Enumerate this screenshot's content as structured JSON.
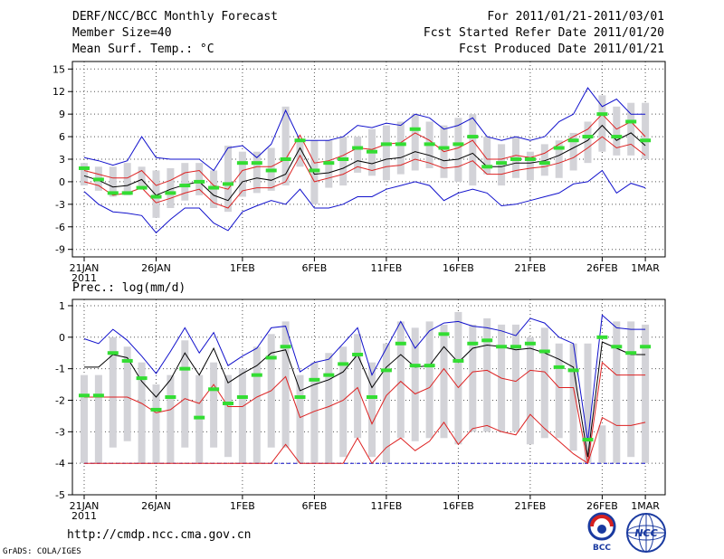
{
  "header": {
    "title": "DERF/NCC/BCC Monthly Forecast",
    "member_size": "Member Size=40",
    "variable": "Mean Surf. Temp.: °C",
    "period": "For 2011/01/21-2011/03/01",
    "started": "Fcst Started Refer Date 2011/01/20",
    "produced": "Fcst Produced Date 2011/01/21"
  },
  "footer": {
    "url": "http://cmdp.ncc.cma.gov.cn",
    "credit": "GrADS: COLA/IGES",
    "logo_left": "BCC",
    "logo_right": "NCC"
  },
  "colors": {
    "box": "#d3d3d8",
    "median": "#33dd33",
    "mean": "#000000",
    "band": "#dd2222",
    "envelope": "#1111cc"
  },
  "chart_data": [
    {
      "type": "box-ensemble",
      "title": "Mean Surf. Temp.: °C",
      "xlabel": "",
      "ylabel": "°C",
      "x_tick_labels": [
        "21JAN",
        "26JAN",
        "1FEB",
        "6FEB",
        "11FEB",
        "16FEB",
        "21FEB",
        "26FEB",
        "1MAR"
      ],
      "x_tick_days": [
        1,
        6,
        12,
        17,
        22,
        27,
        32,
        37,
        40
      ],
      "year_label": "2011",
      "ylim": [
        -10,
        16
      ],
      "yticks": [
        -9,
        -6,
        -3,
        0,
        3,
        6,
        9,
        12,
        15
      ],
      "days": [
        1,
        2,
        3,
        4,
        5,
        6,
        7,
        8,
        9,
        10,
        11,
        12,
        13,
        14,
        15,
        16,
        17,
        18,
        19,
        20,
        21,
        22,
        23,
        24,
        25,
        26,
        27,
        28,
        29,
        30,
        31,
        32,
        33,
        34,
        35,
        36,
        37,
        38,
        39,
        40
      ],
      "box_low": [
        -0.5,
        -1.2,
        -2.0,
        -1.8,
        -1.0,
        -4.8,
        -3.5,
        -2.5,
        -1.8,
        -3.5,
        -4.0,
        -2.0,
        -1.5,
        -1.2,
        -0.5,
        2.0,
        -3.0,
        -0.8,
        -0.5,
        1.2,
        0.8,
        0.2,
        1.0,
        1.5,
        1.8,
        0.5,
        0.0,
        -0.5,
        1.0,
        -0.5,
        0.5,
        0.2,
        0.8,
        0.5,
        1.5,
        2.5,
        4.0,
        3.5,
        3.5,
        3.0
      ],
      "box_high": [
        2.5,
        2.0,
        2.0,
        2.5,
        2.0,
        1.5,
        1.8,
        2.5,
        2.5,
        1.5,
        4.8,
        4.0,
        4.0,
        4.5,
        10.0,
        5.5,
        5.5,
        5.5,
        6.0,
        6.0,
        7.0,
        7.5,
        8.0,
        9.0,
        8.0,
        7.5,
        8.5,
        9.0,
        6.0,
        5.0,
        6.0,
        4.0,
        5.0,
        5.5,
        6.5,
        8.0,
        11.5,
        10.0,
        10.5,
        10.5
      ],
      "median": [
        1.8,
        0.3,
        -1.5,
        -1.5,
        -0.8,
        -2.0,
        -1.5,
        -0.5,
        0.0,
        -0.8,
        -0.3,
        2.5,
        2.5,
        1.5,
        3.0,
        5.5,
        1.5,
        2.5,
        3.0,
        4.5,
        4.0,
        5.0,
        5.0,
        7.0,
        5.0,
        4.5,
        5.0,
        6.0,
        2.0,
        2.5,
        3.0,
        3.0,
        2.5,
        4.5,
        5.5,
        6.0,
        9.0,
        6.0,
        8.0,
        5.5
      ],
      "mean": [
        0.8,
        0.2,
        -0.7,
        -0.5,
        0.3,
        -1.8,
        -1.0,
        -0.4,
        0.0,
        -1.8,
        -2.5,
        0.0,
        0.5,
        0.2,
        1.0,
        4.5,
        1.0,
        1.2,
        1.8,
        2.8,
        2.4,
        3.0,
        3.2,
        4.0,
        3.5,
        2.8,
        3.0,
        3.8,
        2.0,
        2.0,
        2.5,
        2.5,
        2.8,
        3.5,
        4.5,
        5.5,
        7.5,
        5.5,
        6.5,
        4.8
      ],
      "band_upper": [
        1.5,
        1.0,
        0.5,
        0.5,
        1.5,
        -0.5,
        0.2,
        1.2,
        1.5,
        -0.5,
        -1.0,
        1.5,
        2.0,
        2.0,
        3.0,
        6.2,
        2.5,
        2.8,
        3.5,
        4.5,
        4.3,
        5.0,
        5.2,
        6.5,
        5.5,
        4.0,
        4.5,
        5.5,
        3.0,
        3.0,
        3.5,
        3.2,
        3.8,
        5.0,
        6.0,
        7.0,
        9.0,
        7.0,
        8.0,
        6.0
      ],
      "band_lower": [
        0.0,
        -0.5,
        -1.8,
        -1.5,
        -0.8,
        -2.8,
        -2.2,
        -1.5,
        -1.0,
        -2.8,
        -3.5,
        -1.2,
        -0.8,
        -0.8,
        0.0,
        3.5,
        0.0,
        0.5,
        1.0,
        2.0,
        1.5,
        2.0,
        2.2,
        3.0,
        2.5,
        1.8,
        2.0,
        2.8,
        1.0,
        1.0,
        1.5,
        1.8,
        2.0,
        2.5,
        3.2,
        4.5,
        6.0,
        4.5,
        5.0,
        3.5
      ],
      "env_upper": [
        3.2,
        2.8,
        2.2,
        2.8,
        6.0,
        3.2,
        3.0,
        3.0,
        3.0,
        1.5,
        4.5,
        4.8,
        3.2,
        5.0,
        9.5,
        5.5,
        5.5,
        5.5,
        6.0,
        7.5,
        7.2,
        7.8,
        7.5,
        9.0,
        8.5,
        7.0,
        7.5,
        8.5,
        6.0,
        5.5,
        6.0,
        5.5,
        6.0,
        8.0,
        9.0,
        12.5,
        10.0,
        11.0,
        9.0,
        9.0
      ],
      "env_lower": [
        -1.3,
        -3.0,
        -4.0,
        -4.2,
        -4.5,
        -6.8,
        -5.0,
        -3.5,
        -3.5,
        -5.5,
        -6.5,
        -4.0,
        -3.2,
        -2.5,
        -3.0,
        -1.0,
        -3.5,
        -3.5,
        -3.0,
        -2.0,
        -2.0,
        -1.0,
        -0.5,
        0.0,
        -0.5,
        -2.5,
        -1.5,
        -1.0,
        -1.5,
        -3.2,
        -3.0,
        -2.5,
        -2.0,
        -1.5,
        -0.3,
        0.0,
        1.5,
        -1.5,
        -0.2,
        -0.8
      ]
    },
    {
      "type": "box-ensemble",
      "title": "Prec.: log(mm/d)",
      "xlabel": "",
      "ylabel": "log(mm/d)",
      "x_tick_labels": [
        "21JAN",
        "26JAN",
        "1FEB",
        "6FEB",
        "11FEB",
        "16FEB",
        "21FEB",
        "26FEB",
        "1MAR"
      ],
      "x_tick_days": [
        1,
        6,
        12,
        17,
        22,
        27,
        32,
        37,
        40
      ],
      "year_label": "2011",
      "ylim": [
        -5,
        1.2
      ],
      "yticks": [
        -5,
        -4,
        -3,
        -2,
        -1,
        0,
        1
      ],
      "days": [
        1,
        2,
        3,
        4,
        5,
        6,
        7,
        8,
        9,
        10,
        11,
        12,
        13,
        14,
        15,
        16,
        17,
        18,
        19,
        20,
        21,
        22,
        23,
        24,
        25,
        26,
        27,
        28,
        29,
        30,
        31,
        32,
        33,
        34,
        35,
        36,
        37,
        38,
        39,
        40
      ],
      "box_low": [
        -4,
        -4,
        -3.5,
        -3.3,
        -4,
        -4,
        -4,
        -3.5,
        -4,
        -3.5,
        -3.8,
        -4,
        -4,
        -3.5,
        -3.5,
        -4,
        -4,
        -4,
        -3.8,
        -3.2,
        -3.8,
        -4,
        -3.2,
        -3.3,
        -3.2,
        -3.2,
        -3.4,
        -3.0,
        -3.0,
        -3.0,
        -3.0,
        -3.4,
        -3.2,
        -3.2,
        -3.6,
        -4,
        -4,
        -4,
        -3.8,
        -4
      ],
      "box_high": [
        -1.2,
        -1.2,
        0.0,
        -0.3,
        -0.8,
        -1.5,
        -1.2,
        -0.1,
        -1.2,
        -0.8,
        -1.2,
        -1.0,
        -0.3,
        0.1,
        0.5,
        -1.2,
        -0.8,
        -0.5,
        -0.3,
        0.1,
        -0.8,
        -0.2,
        0.5,
        0.3,
        0.5,
        0.4,
        0.8,
        0.4,
        0.6,
        0.4,
        0.4,
        0.0,
        0.3,
        -0.2,
        -0.2,
        -0.2,
        -2.8,
        0.5,
        0.5,
        0.4
      ],
      "median": [
        -1.85,
        -1.85,
        -0.5,
        -0.75,
        -1.3,
        -2.3,
        -1.9,
        -1.0,
        -2.55,
        -1.65,
        -2.1,
        -1.9,
        -1.2,
        -0.65,
        -0.3,
        -1.9,
        -1.35,
        -1.2,
        -0.85,
        -0.55,
        -1.9,
        -1.05,
        -0.2,
        -0.9,
        -0.9,
        0.1,
        -0.75,
        -0.2,
        -0.1,
        -0.3,
        -0.3,
        -0.2,
        -0.45,
        -0.95,
        -1.05,
        -3.25,
        0.0,
        -0.3,
        -0.5,
        -0.3
      ],
      "mean": [
        -0.95,
        -0.95,
        -0.55,
        -0.65,
        -1.4,
        -1.9,
        -1.35,
        -0.5,
        -1.2,
        -0.35,
        -1.45,
        -1.15,
        -0.9,
        -0.5,
        -0.4,
        -1.7,
        -1.5,
        -1.35,
        -1.1,
        -0.55,
        -1.6,
        -0.95,
        -0.55,
        -0.95,
        -0.9,
        -0.3,
        -0.8,
        -0.35,
        -0.25,
        -0.3,
        -0.4,
        -0.35,
        -0.5,
        -0.7,
        -0.95,
        -3.8,
        -0.15,
        -0.35,
        -0.55,
        -0.55
      ],
      "band_upper": [
        -1.9,
        -1.9,
        -1.9,
        -1.9,
        -2.1,
        -2.4,
        -2.3,
        -1.95,
        -2.1,
        -1.5,
        -2.2,
        -2.2,
        -1.9,
        -1.7,
        -1.25,
        -2.55,
        -2.35,
        -2.2,
        -2.0,
        -1.6,
        -2.75,
        -1.85,
        -1.4,
        -1.8,
        -1.6,
        -1.0,
        -1.6,
        -1.1,
        -1.05,
        -1.3,
        -1.4,
        -1.05,
        -1.1,
        -1.6,
        -1.6,
        -4.0,
        -0.8,
        -1.2,
        -1.2,
        -1.2
      ],
      "band_lower": [
        -4,
        -4,
        -4,
        -4,
        -4,
        -4,
        -4,
        -4,
        -4,
        -4,
        -4,
        -4,
        -4,
        -4,
        -3.4,
        -4,
        -4,
        -4,
        -4,
        -3.2,
        -4,
        -3.5,
        -3.2,
        -3.6,
        -3.3,
        -2.7,
        -3.4,
        -2.9,
        -2.8,
        -3.0,
        -3.1,
        -2.45,
        -2.9,
        -3.3,
        -3.7,
        -4.0,
        -2.55,
        -2.8,
        -2.8,
        -2.7
      ],
      "env_upper": [
        -0.05,
        -0.2,
        0.25,
        -0.1,
        -0.6,
        -1.15,
        -0.45,
        0.3,
        -0.5,
        0.15,
        -0.9,
        -0.6,
        -0.35,
        0.3,
        0.35,
        -1.1,
        -0.8,
        -0.7,
        -0.2,
        0.3,
        -1.2,
        -0.35,
        0.5,
        -0.35,
        0.2,
        0.45,
        0.5,
        0.35,
        0.3,
        0.2,
        0.05,
        0.6,
        0.45,
        0.0,
        -0.2,
        -3.3,
        0.7,
        0.3,
        0.25,
        0.25
      ],
      "env_lower": [
        -4,
        -4,
        -4,
        -4,
        -4,
        -4,
        -4,
        -4,
        -4,
        -4,
        -4,
        -4,
        -4,
        -4,
        -4,
        -4,
        -4,
        -4,
        -4,
        -4,
        -4,
        -4,
        -4,
        -4,
        -4,
        -4,
        -4,
        -4,
        -4,
        -4,
        -4,
        -4,
        -4,
        -4,
        -4,
        -4,
        -4,
        -4,
        -4,
        -4
      ]
    }
  ]
}
